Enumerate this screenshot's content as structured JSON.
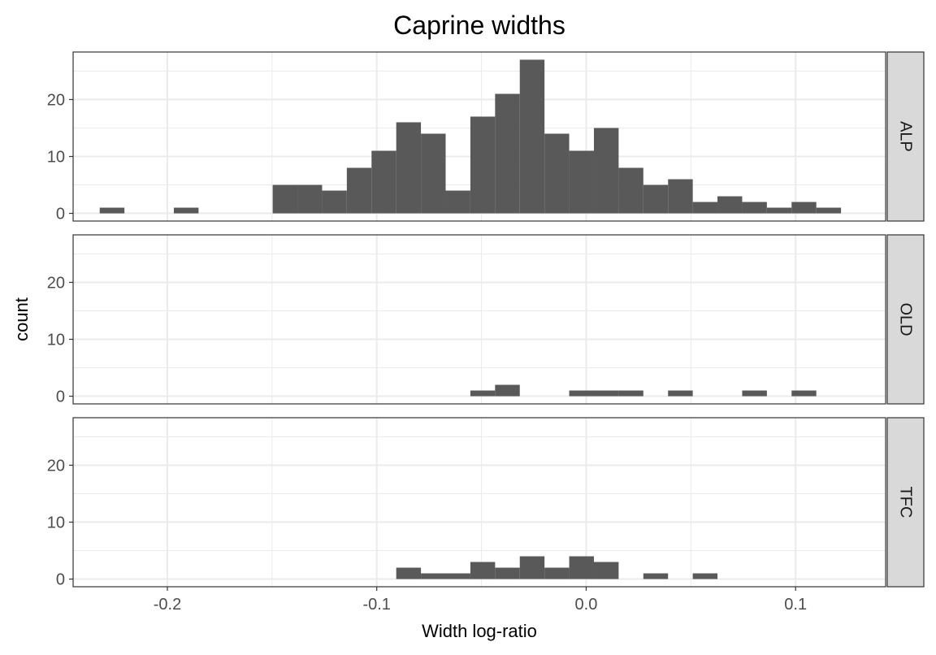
{
  "chart_data": {
    "type": "bar",
    "title": "Caprine widths",
    "xlabel": "Width log-ratio",
    "ylabel": "count",
    "xlim": [
      -0.245,
      0.143
    ],
    "ylim": [
      -1.35,
      28.35
    ],
    "x_ticks": [
      -0.2,
      -0.1,
      0.0,
      0.1
    ],
    "x_tick_labels": [
      "-0.2",
      "-0.1",
      "0.0",
      "0.1"
    ],
    "y_ticks": [
      0,
      10,
      20
    ],
    "y_tick_labels": [
      "0",
      "10",
      "20"
    ],
    "grid": true,
    "bin_width": 0.0118,
    "bin_start": -0.2323,
    "facets": [
      {
        "label": "ALP",
        "counts": [
          1,
          0,
          0,
          1,
          0,
          0,
          0,
          5,
          5,
          4,
          8,
          11,
          16,
          14,
          4,
          17,
          21,
          27,
          14,
          11,
          15,
          8,
          5,
          6,
          2,
          3,
          2,
          1,
          2,
          1
        ]
      },
      {
        "label": "OLD",
        "counts": [
          0,
          0,
          0,
          0,
          0,
          0,
          0,
          0,
          0,
          0,
          0,
          0,
          0,
          0,
          0,
          1,
          2,
          0,
          0,
          1,
          1,
          1,
          0,
          1,
          0,
          0,
          1,
          0,
          1,
          0
        ]
      },
      {
        "label": "TFC",
        "counts": [
          0,
          0,
          0,
          0,
          0,
          0,
          0,
          0,
          0,
          0,
          0,
          0,
          2,
          1,
          1,
          3,
          2,
          4,
          2,
          4,
          3,
          0,
          1,
          0,
          1,
          0,
          0,
          0,
          0,
          0
        ]
      }
    ],
    "colors": {
      "bar": "#595959",
      "grid": "#ebebeb",
      "panel_border": "#333333",
      "strip_fill": "#d9d9d9",
      "tick_text": "#4d4d4d"
    }
  }
}
